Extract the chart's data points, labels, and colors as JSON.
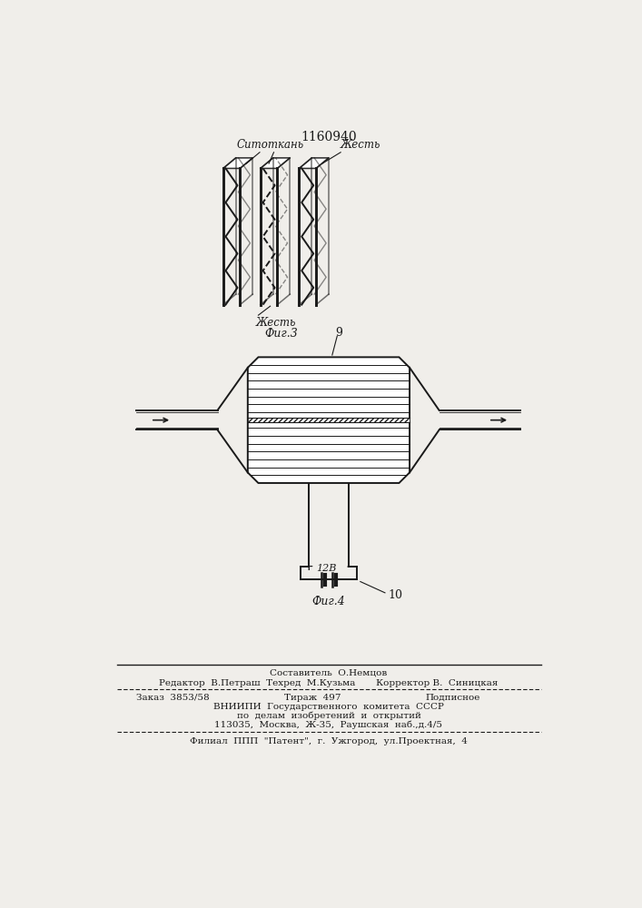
{
  "patent_number": "1160940",
  "fig3_label": "Фиг.3",
  "fig4_label": "Фиг.4",
  "label_sitotkane": "Ситоткань",
  "label_zhest_top": "Жесть",
  "label_zhest_bot": "Жесть",
  "label_9": "9",
  "label_10": "10",
  "label_12v": "12В",
  "footer_line1": "Составитель  О.Немцов",
  "footer_line2_left": "Редактор  В.Петраш",
  "footer_line2_mid": "Техред  М.Кузьма",
  "footer_line2_right": "Корректор В.  Синицкая",
  "footer_line3_left": "Заказ  3853/58",
  "footer_line3_mid": "Тираж  497",
  "footer_line3_right": "Подписное",
  "footer_line4": "ВНИИПИ  Государственного  комитета  СССР",
  "footer_line5": "по  делам  изобретений  и  открытий",
  "footer_line6": "113035,  Москва,  Ж-35,  Раушская  наб.,д.4/5",
  "footer_line7": "Филиал  ППП  \"Патент\",  г.  Ужгород,  ул.Проектная,  4",
  "bg_color": "#f0eeea",
  "line_color": "#1a1a1a"
}
